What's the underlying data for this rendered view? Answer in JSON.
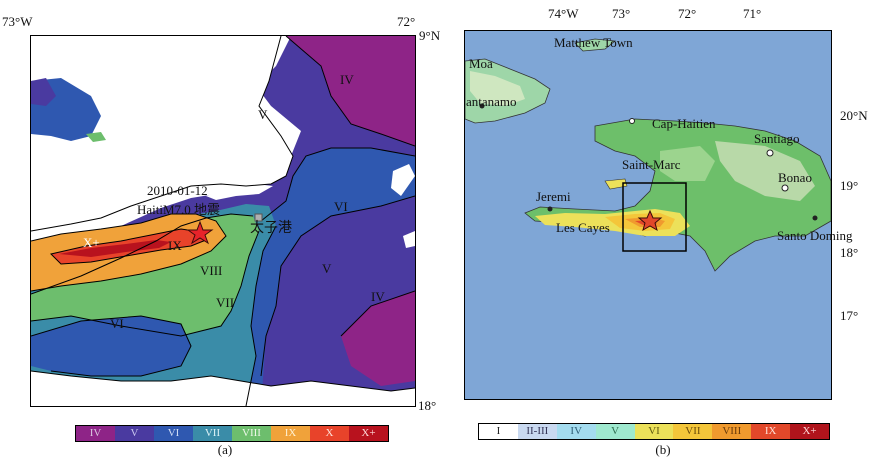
{
  "panel_a": {
    "axis_labels": {
      "left_lon": "73°W",
      "right_lon": "72°",
      "top_lat": "9°N",
      "bottom_lat": "18°"
    },
    "event": {
      "date": "2010-01-12",
      "title_prefix": "Haiti",
      "magnitude": "M7.0 地震"
    },
    "city_label": "太子港",
    "zone_labels": {
      "iv_ne": "IV",
      "v_n": "V",
      "vi_e": "VI",
      "v_e": "V",
      "iv_se": "IV",
      "x_plus": "X+",
      "ix": "IX",
      "viii": "VIII",
      "vii": "VII",
      "vi_sw": "VI"
    },
    "colorbar": [
      {
        "label": "IV",
        "color": "#8e2487",
        "text_color": "#d9c6e0"
      },
      {
        "label": "V",
        "color": "#4a3aa0",
        "text_color": "#c9c6ef"
      },
      {
        "label": "VI",
        "color": "#2f58b0",
        "text_color": "#d2def5"
      },
      {
        "label": "VII",
        "color": "#3a8ca8",
        "text_color": "#dcf2f6"
      },
      {
        "label": "VIII",
        "color": "#6dbe6d",
        "text_color": "#eef8e9"
      },
      {
        "label": "IX",
        "color": "#f0a23a",
        "text_color": "#fff0cf"
      },
      {
        "label": "X",
        "color": "#e8432a",
        "text_color": "#ffe1d8"
      },
      {
        "label": "X+",
        "color": "#b8121e",
        "text_color": "#ffd9d9"
      }
    ],
    "caption": "(a)"
  },
  "panel_b": {
    "lon_labels": [
      "74°W",
      "73°",
      "72°",
      "71°"
    ],
    "lat_labels": [
      "20°N",
      "19°",
      "18°",
      "17°"
    ],
    "places": {
      "matthew": "Matthew Town",
      "moa": "Moa",
      "guantanamo": "antanamo",
      "cap_haitien": "Cap-Haitien",
      "santiago": "Santiago",
      "saint_marc": "Saint-Marc",
      "bonao": "Bonao",
      "jeremi": "Jeremi",
      "les_cayes": "Les Cayes",
      "santo_doming": "Santo Doming"
    },
    "colorbar": [
      {
        "label": "I",
        "color": "#ffffff",
        "text_color": "#222222"
      },
      {
        "label": "II-III",
        "color": "#c9d9f0",
        "text_color": "#333355"
      },
      {
        "label": "IV",
        "color": "#a4dcef",
        "text_color": "#2f5f77"
      },
      {
        "label": "V",
        "color": "#9fe9cf",
        "text_color": "#2f6f50"
      },
      {
        "label": "VI",
        "color": "#ece15a",
        "text_color": "#5f5a10"
      },
      {
        "label": "VII",
        "color": "#f4c63a",
        "text_color": "#6a4b0a"
      },
      {
        "label": "VIII",
        "color": "#f09a2e",
        "text_color": "#6a3a0a"
      },
      {
        "label": "IX",
        "color": "#e2482a",
        "text_color": "#ffe0d6"
      },
      {
        "label": "X+",
        "color": "#b0141c",
        "text_color": "#ffd9d9"
      }
    ],
    "caption": "(b)"
  }
}
